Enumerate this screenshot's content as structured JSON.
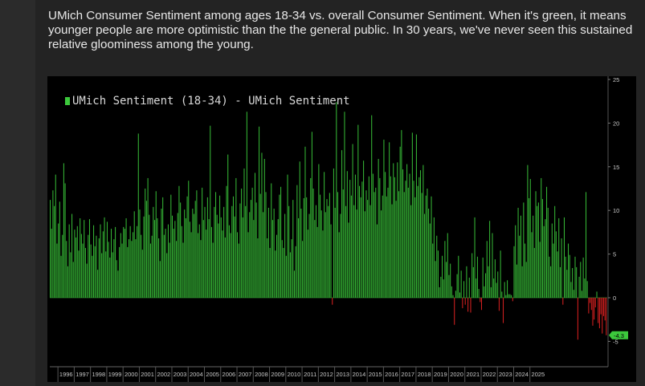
{
  "caption": "UMich Consumer Sentiment among ages 18-34 vs. overall Consumer Sentiment. When it's green, it means younger people are more optimistic than the the general public. In 30 years, we've never seen this sustained relative gloominess among the young.",
  "colors": {
    "positive": "#35b535",
    "negative": "#d42020",
    "background": "#000000",
    "axis_text": "#c8c8c8",
    "last_value_badge": "#3cc83c"
  },
  "chart_data": {
    "type": "bar",
    "title": "",
    "legend": [
      "UMich Sentiment (18-34) - UMich Sentiment"
    ],
    "legend_placement": "top-left",
    "xlabel": "",
    "ylabel": "",
    "ylim": [
      -7,
      25
    ],
    "y_ticks": [
      25,
      20,
      15,
      10,
      5,
      0,
      -5
    ],
    "y_axis_side": "right",
    "x_ticks": [
      "1996",
      "1997",
      "1998",
      "1999",
      "2000",
      "2001",
      "2002",
      "2003",
      "2004",
      "2005",
      "2006",
      "2007",
      "2008",
      "2009",
      "2010",
      "2011",
      "2012",
      "2013",
      "2014",
      "2015",
      "2016",
      "2017",
      "2018",
      "2019",
      "2020",
      "2021",
      "2022",
      "2023",
      "2024",
      "2025"
    ],
    "last_value_label": "-4.3",
    "x_start": "1995-07",
    "grid": false,
    "series": [
      {
        "name": "UMich Sentiment (18-34) - UMich Sentiment",
        "values": [
          11.2,
          7.9,
          12.3,
          10.5,
          14.1,
          6.2,
          8.5,
          11.0,
          4.8,
          7.2,
          15.4,
          13.1,
          6.5,
          3.6,
          8.4,
          5.2,
          9.6,
          4.1,
          7.8,
          6.9,
          8.2,
          5.4,
          9.1,
          7.3,
          6.2,
          8.9,
          5.7,
          3.9,
          7.2,
          9.0,
          6.1,
          4.8,
          8.3,
          5.9,
          7.1,
          3.2,
          6.8,
          8.4,
          5.1,
          7.6,
          9.2,
          5.3,
          8.7,
          6.4,
          4.6,
          7.9,
          5.2,
          6.7,
          8.1,
          4.3,
          3.1,
          5.8,
          7.4,
          6.2,
          8.1,
          7.9,
          9.1,
          5.8,
          6.7,
          8.2,
          6.5,
          7.5,
          9.9,
          6.7,
          8.2,
          18.8,
          10.1,
          7.2,
          5.5,
          9.3,
          12.5,
          11.1,
          13.7,
          9.5,
          6.2,
          7.1,
          10.4,
          8.9,
          12.2,
          9.1,
          6.8,
          4.2,
          10.2,
          11.5,
          7.2,
          7.9,
          5.1,
          8.4,
          6.3,
          11.8,
          9.4,
          7.9,
          8.8,
          6.5,
          9.7,
          12.8,
          10.9,
          8.2,
          6.3,
          10.1,
          9.1,
          11.6,
          13.4,
          8.7,
          7.5,
          10.2,
          9.6,
          11.1,
          12.3,
          7.4,
          8.4,
          6.6,
          12.6,
          8.9,
          10.4,
          7.8,
          11.5,
          9.0,
          19.7,
          8.1,
          6.3,
          10.4,
          12.1,
          9.5,
          8.5,
          11.7,
          9.2,
          7.7,
          10.4,
          6.9,
          12.8,
          16.4,
          8.3,
          7.4,
          10.5,
          11.6,
          9.3,
          13.7,
          7.5,
          6.2,
          10.8,
          12.5,
          9.2,
          14.8,
          10.5,
          21.3,
          7.5,
          9.8,
          11.2,
          12.6,
          8.9,
          14.3,
          10.9,
          6.8,
          19.6,
          11.9,
          16.6,
          9.8,
          15.9,
          12.1,
          6.8,
          10.3,
          5.7,
          13.1,
          8.9,
          10.2,
          5.4,
          7.2,
          9.0,
          11.8,
          12.7,
          6.6,
          5.7,
          9.6,
          4.8,
          14.1,
          10.5,
          5.2,
          6.7,
          11.2,
          3.1,
          5.9,
          12.9,
          9.1,
          15.6,
          10.2,
          6.5,
          11.4,
          17.3,
          11.5,
          7.8,
          9.6,
          13.7,
          19.0,
          12.5,
          8.9,
          10.6,
          8.1,
          15.3,
          11.8,
          10.0,
          7.7,
          14.4,
          9.8,
          11.3,
          10.5,
          12.0,
          8.4,
          -0.8,
          14.8,
          10.3,
          22.4,
          12.1,
          7.5,
          9.6,
          16.9,
          12.4,
          21.3,
          10.5,
          14.5,
          8.6,
          13.5,
          11.7,
          17.6,
          10.6,
          14.1,
          10.1,
          19.8,
          12.8,
          11.5,
          13.3,
          15.7,
          9.9,
          12.3,
          11.2,
          13.9,
          10.6,
          20.9,
          14.2,
          12.1,
          12.6,
          8.4,
          15.9,
          13.7,
          10.0,
          11.7,
          18.1,
          14.4,
          11.6,
          12.6,
          17.8,
          13.9,
          10.7,
          15.4,
          13.8,
          11.1,
          15.5,
          12.2,
          17.3,
          19.2,
          14.7,
          12.1,
          13.4,
          15.3,
          12.6,
          14.2,
          10.6,
          18.9,
          13.4,
          11.5,
          18.7,
          12.8,
          13.8,
          14.6,
          12.0,
          15.2,
          9.6,
          11.7,
          12.5,
          10.2,
          8.5,
          11.6,
          6.2,
          9.2,
          4.2,
          7.1,
          5.4,
          1.2,
          2.4,
          4.8,
          2.1,
          6.5,
          4.1,
          7.4,
          2.6,
          3.9,
          1.3,
          0.3,
          -3.1,
          0.8,
          2.7,
          4.8,
          0.6,
          3.1,
          -1.2,
          1.9,
          -0.8,
          3.6,
          -1.6,
          2.3,
          -1.7,
          5.1,
          3.5,
          9.2,
          2.2,
          4.7,
          1.0,
          -0.5,
          -1.4,
          4.6,
          1.3,
          2.8,
          6.5,
          3.6,
          8.8,
          1.2,
          7.4,
          2.2,
          4.4,
          1.7,
          3.0,
          -1.5,
          5.4,
          0.7,
          -2.9,
          1.8,
          0.3,
          2.0,
          0.4,
          0.4,
          0.3,
          -0.4,
          5.9,
          8.3,
          3.8,
          10.3,
          7.1,
          9.4,
          3.6,
          10.9,
          6.2,
          4.1,
          15.2,
          11.4,
          13.6,
          7.5,
          9.4,
          5.7,
          12.2,
          10.5,
          10.9,
          6.4,
          13.7,
          11.3,
          8.2,
          9.0,
          12.7,
          10.3,
          4.7,
          3.6,
          8.5,
          6.2,
          10.5,
          7.6,
          5.3,
          9.1,
          3.5,
          6.8,
          -0.8,
          9.2,
          4.7,
          3.2,
          6.2,
          4.9,
          1.8,
          3.4,
          0.9,
          4.7,
          3.5,
          -4.8,
          2.4,
          4.1,
          0.8,
          4.6,
          2.2,
          12.1,
          1.9,
          -1.8,
          -0.6,
          -1.4,
          -3.2,
          -2.5,
          -1.1,
          0.7,
          -2.9,
          -3.5,
          -1.9,
          -4.1,
          -2.1,
          -2.6,
          -4.3
        ]
      }
    ]
  }
}
